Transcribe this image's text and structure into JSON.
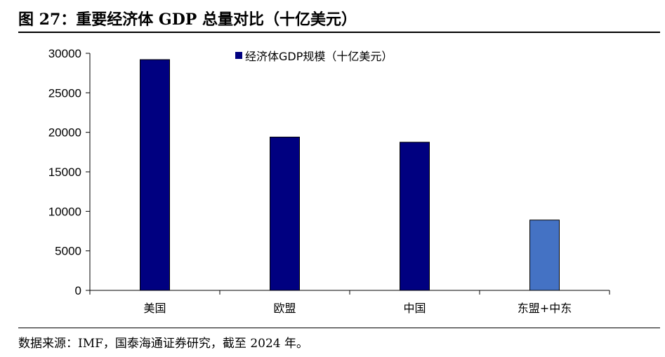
{
  "title": "图 27：重要经济体 GDP 总量对比（十亿美元）",
  "source": "数据来源：IMF，国泰海通证券研究，截至 2024 年。",
  "chart_data": {
    "type": "bar",
    "categories": [
      "美国",
      "欧盟",
      "中国",
      "东盟+中东"
    ],
    "series": [
      {
        "name": "经济体GDP规模（十亿美元）",
        "values": [
          29200,
          19400,
          18750,
          8900
        ]
      }
    ],
    "bar_colors": [
      "#000080",
      "#000080",
      "#000080",
      "#4472C4"
    ],
    "ylim": [
      0,
      30000
    ],
    "yticks": [
      0,
      5000,
      10000,
      15000,
      20000,
      25000,
      30000
    ],
    "xlabel": "",
    "ylabel": "",
    "grid": false,
    "legend_position": "top-center"
  }
}
